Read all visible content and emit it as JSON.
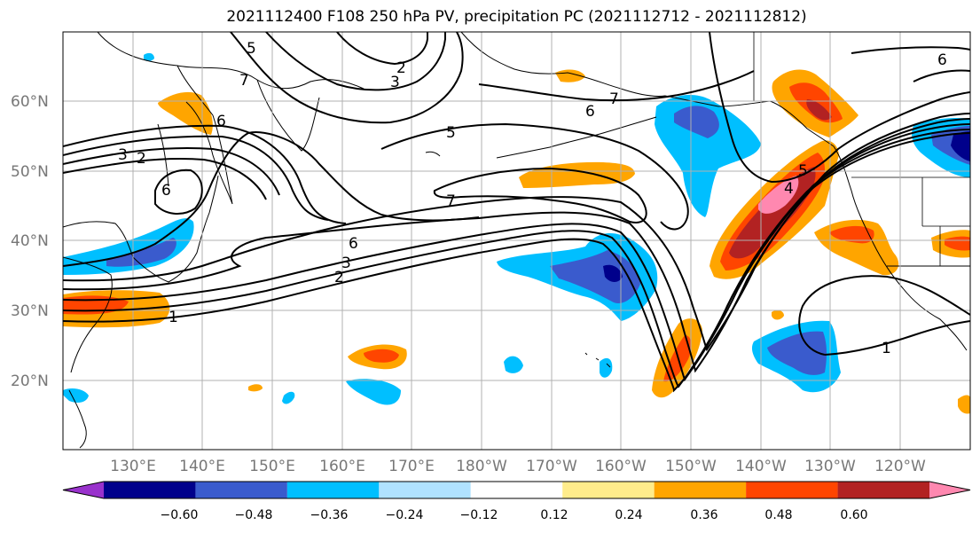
{
  "title": "2021112400 F108 250 hPa PV, precipitation PC (2021112712 - 2021112812)",
  "latitude_labels": [
    "60°N",
    "50°N",
    "40°N",
    "30°N",
    "20°N"
  ],
  "longitude_labels": [
    "130°E",
    "140°E",
    "150°E",
    "160°E",
    "170°E",
    "180°W",
    "170°W",
    "160°W",
    "150°W",
    "140°W",
    "130°W",
    "120°W"
  ],
  "colorbar": {
    "tick_labels": [
      "−0.60",
      "−0.48",
      "−0.36",
      "−0.24",
      "−0.12",
      "0.12",
      "0.24",
      "0.36",
      "0.48",
      "0.60"
    ],
    "colors": [
      "#9932cc",
      "#00008b",
      "#3a5bcd",
      "#00bfff",
      "#b0e2ff",
      "#ffffff",
      "#ffec8b",
      "#ffa500",
      "#ff4500",
      "#b22222",
      "#ff88b0"
    ]
  },
  "pv_contour_labels": [
    "5",
    "7",
    "2",
    "3",
    "6",
    "6",
    "7",
    "5",
    "7",
    "6",
    "3",
    "2",
    "6",
    "2",
    "3",
    "1",
    "5",
    "4",
    "1",
    "6"
  ],
  "colors": {
    "background": "#ffffff",
    "coastline": "#000000",
    "gridline": "#b0b0b0",
    "contour": "#000000",
    "tick_label": "#777777"
  }
}
